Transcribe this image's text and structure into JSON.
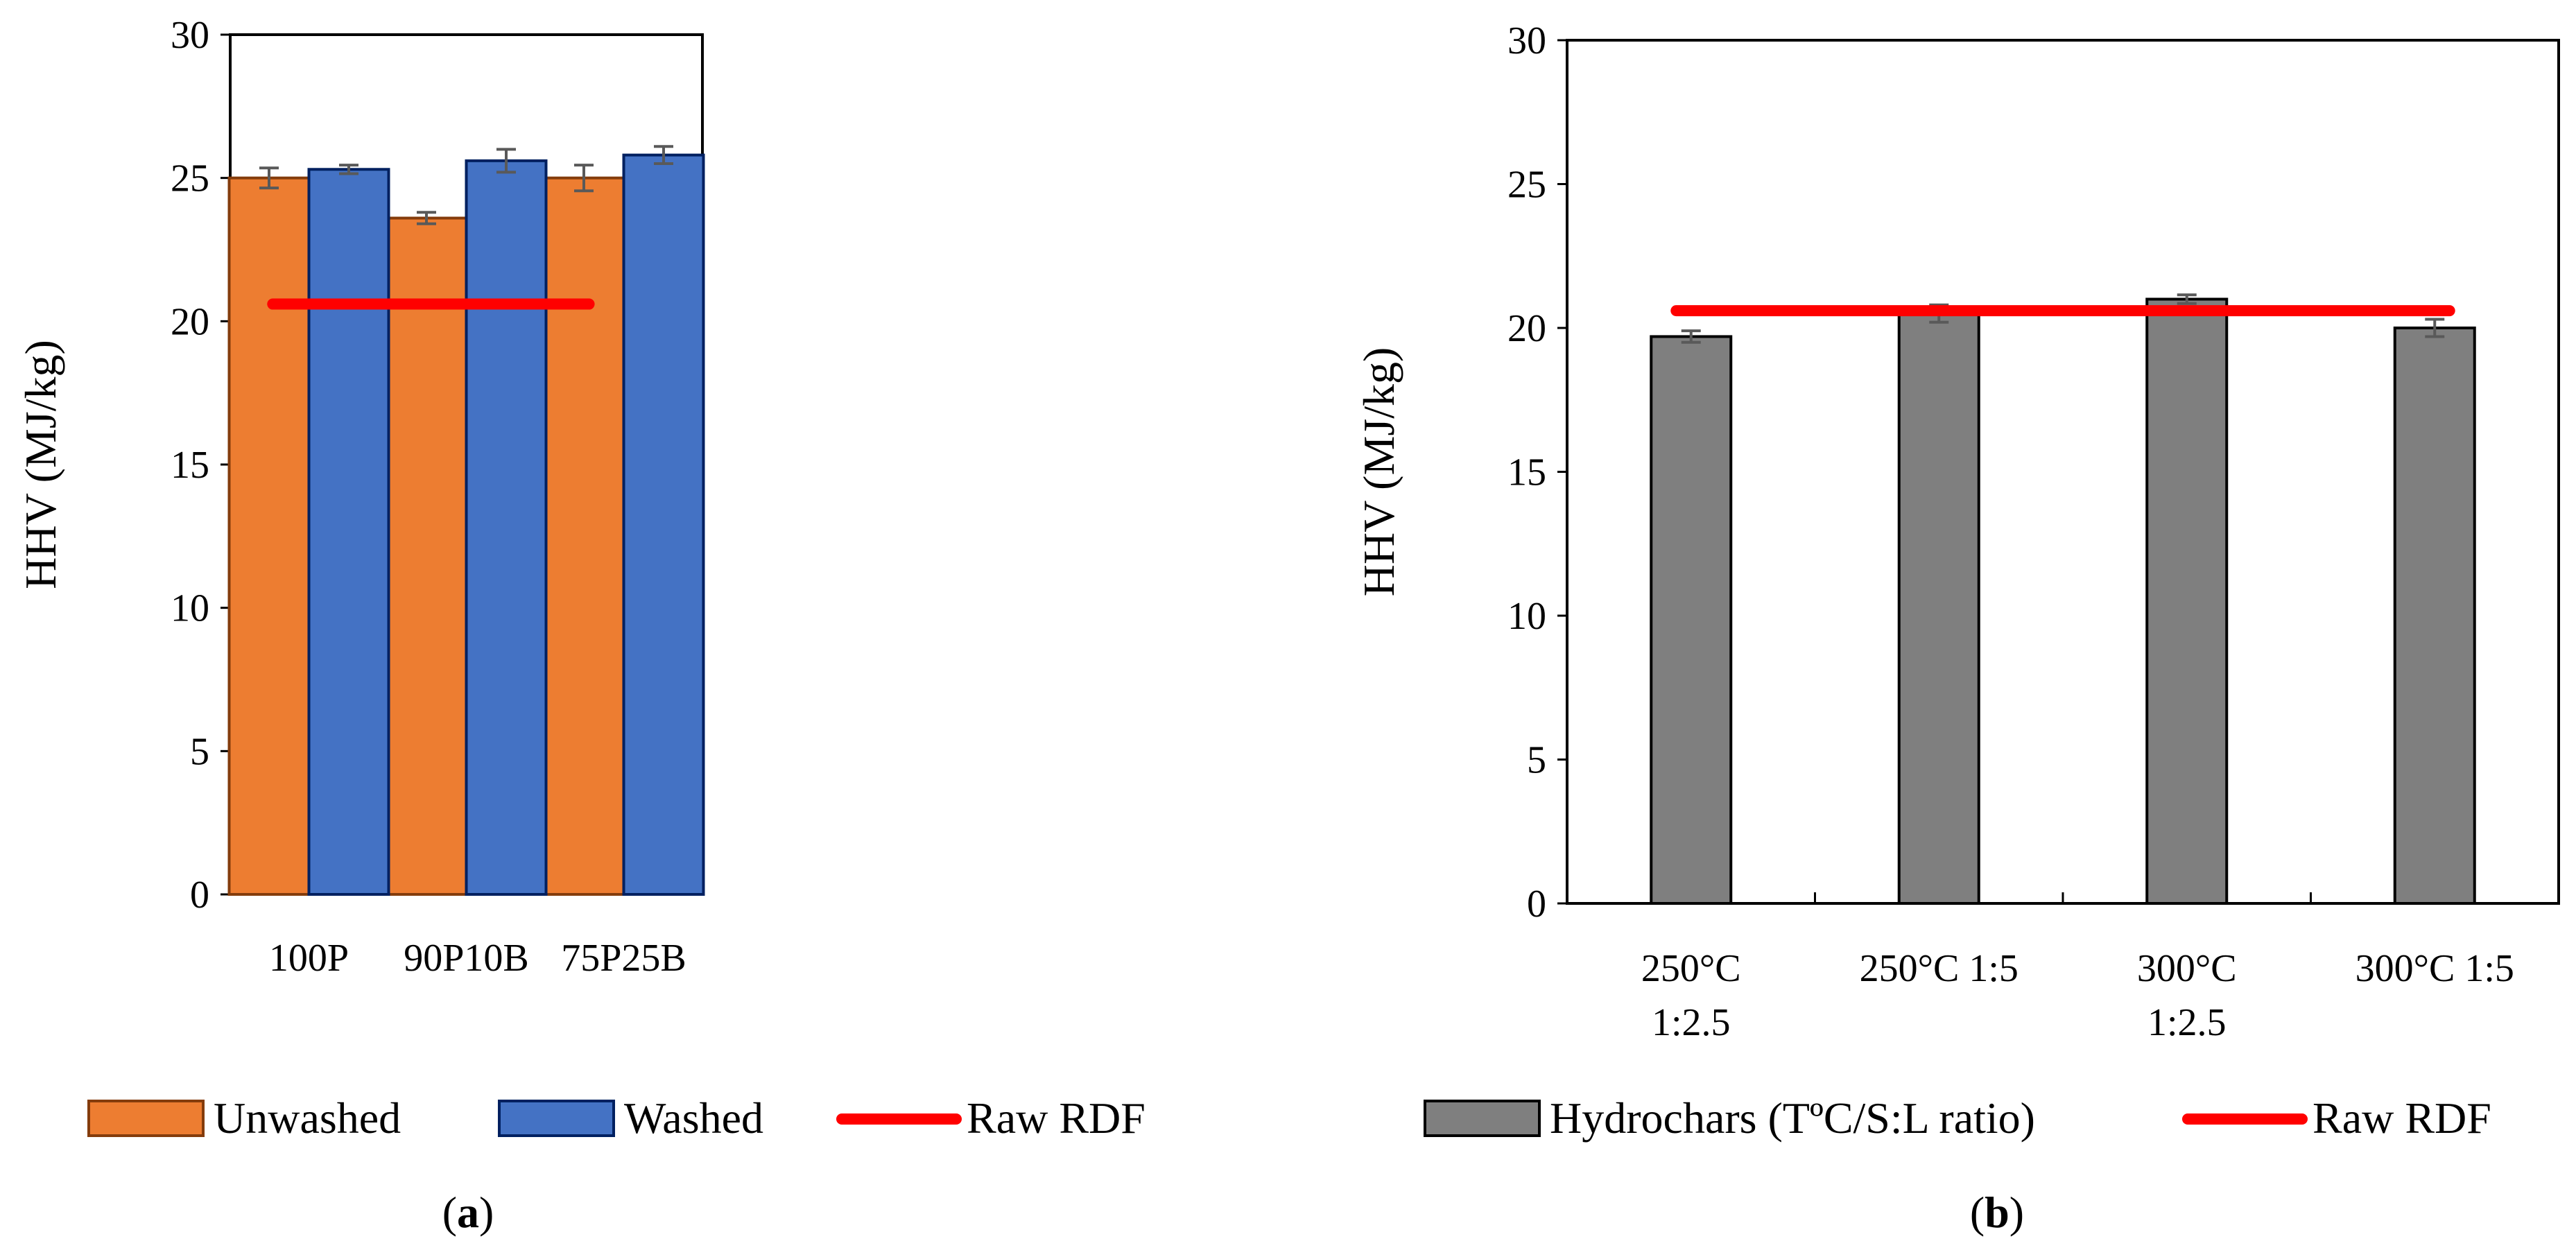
{
  "chart_data": [
    {
      "type": "bar",
      "panel_label": "a",
      "categories": [
        "100P",
        "90P10B",
        "75P25B"
      ],
      "series": [
        {
          "name": "Unwashed",
          "values": [
            25.0,
            23.6,
            25.0
          ],
          "errors": [
            0.35,
            0.2,
            0.45
          ],
          "color": "#ED7D31",
          "stroke": "#843C0C"
        },
        {
          "name": "Washed",
          "values": [
            25.3,
            25.6,
            25.8
          ],
          "errors": [
            0.15,
            0.4,
            0.3
          ],
          "color": "#4472C4",
          "stroke": "#002060"
        }
      ],
      "reference_line": {
        "name": "Raw RDF",
        "value": 20.6,
        "color": "#FF0000"
      },
      "ylabel": "HHV (MJ/kg)",
      "xlabel": "",
      "ylim": [
        0,
        30
      ],
      "yticks": [
        0,
        5,
        10,
        15,
        20,
        25,
        30
      ],
      "grid": false,
      "legend_placement": "bottom"
    },
    {
      "type": "bar",
      "panel_label": "b",
      "categories": [
        [
          "250°C",
          "1:2.5"
        ],
        [
          "250°C 1:5"
        ],
        [
          "300°C",
          "1:2.5"
        ],
        [
          "300°C 1:5"
        ]
      ],
      "series": [
        {
          "name": "Hydrochars (TºC/S:L ratio)",
          "values": [
            19.7,
            20.5,
            21.0,
            20.0
          ],
          "errors": [
            0.2,
            0.3,
            0.15,
            0.3
          ],
          "color": "#7F7F7F",
          "stroke": "#000000"
        }
      ],
      "reference_line": {
        "name": "Raw RDF",
        "value": 20.6,
        "color": "#FF0000"
      },
      "ylabel": "HHV (MJ/kg)",
      "xlabel": "",
      "ylim": [
        0,
        30
      ],
      "yticks": [
        0,
        5,
        10,
        15,
        20,
        25,
        30
      ],
      "grid": false,
      "legend_placement": "bottom"
    }
  ]
}
